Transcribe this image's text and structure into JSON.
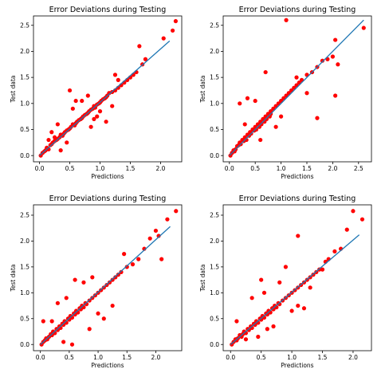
{
  "chart_data": [
    {
      "type": "scatter",
      "title": "Error Deviations during Testing",
      "xlabel": "Predictions",
      "ylabel": "Test data",
      "xlim": [
        -0.1,
        2.35
      ],
      "ylim": [
        -0.12,
        2.68
      ],
      "xticks": [
        "0.0",
        "0.5",
        "1.0",
        "1.5",
        "2.0"
      ],
      "yticks": [
        "0.0",
        "0.5",
        "1.0",
        "1.5",
        "2.0",
        "2.5"
      ],
      "point_color": "#ff0000",
      "line_color": "#1f77b4",
      "fit_line": {
        "x": [
          0.0,
          2.15
        ],
        "y": [
          0.0,
          2.2
        ]
      },
      "x": [
        0.02,
        0.05,
        0.08,
        0.1,
        0.12,
        0.15,
        0.18,
        0.2,
        0.22,
        0.25,
        0.28,
        0.3,
        0.33,
        0.35,
        0.38,
        0.4,
        0.42,
        0.45,
        0.48,
        0.5,
        0.52,
        0.55,
        0.58,
        0.6,
        0.62,
        0.65,
        0.68,
        0.7,
        0.72,
        0.75,
        0.78,
        0.8,
        0.82,
        0.85,
        0.88,
        0.9,
        0.92,
        0.95,
        0.98,
        1.0,
        1.02,
        1.05,
        1.08,
        1.1,
        1.12,
        1.15,
        1.2,
        1.25,
        1.3,
        1.35,
        1.4,
        1.45,
        1.5,
        1.55,
        1.6,
        1.7,
        1.75,
        1.1,
        0.55,
        0.6,
        0.3,
        0.2,
        0.15,
        0.7,
        0.45,
        0.85,
        0.9,
        1.0,
        1.2,
        0.5,
        0.25,
        0.35,
        1.25,
        1.3,
        0.95,
        2.05,
        2.2,
        2.25,
        1.65,
        0.8
      ],
      "y": [
        0.0,
        0.05,
        0.08,
        0.1,
        0.15,
        0.12,
        0.2,
        0.22,
        0.25,
        0.28,
        0.3,
        0.32,
        0.35,
        0.4,
        0.38,
        0.42,
        0.45,
        0.48,
        0.5,
        0.52,
        0.55,
        0.6,
        0.58,
        0.62,
        0.65,
        0.68,
        0.7,
        0.72,
        0.75,
        0.78,
        0.8,
        0.82,
        0.85,
        0.88,
        0.9,
        0.95,
        0.92,
        0.98,
        1.0,
        1.02,
        1.05,
        1.08,
        1.1,
        1.12,
        1.15,
        1.2,
        1.22,
        1.25,
        1.3,
        1.35,
        1.4,
        1.45,
        1.5,
        1.55,
        1.6,
        1.75,
        1.85,
        0.65,
        0.9,
        1.05,
        0.6,
        0.45,
        0.3,
        1.05,
        0.25,
        0.55,
        0.7,
        0.85,
        0.95,
        1.25,
        0.35,
        0.1,
        1.55,
        1.45,
        0.75,
        2.25,
        2.4,
        2.58,
        2.1,
        1.15
      ]
    },
    {
      "type": "scatter",
      "title": "Error Deviations during Testing",
      "xlabel": "Predictions",
      "ylabel": "Test data",
      "xlim": [
        -0.12,
        2.75
      ],
      "ylim": [
        -0.12,
        2.68
      ],
      "xticks": [
        "0.0",
        "0.5",
        "1.0",
        "1.5",
        "2.0",
        "2.5"
      ],
      "yticks": [
        "0.0",
        "0.5",
        "1.0",
        "1.5",
        "2.0",
        "2.5"
      ],
      "point_color": "#ff0000",
      "line_color": "#1f77b4",
      "fit_line": {
        "x": [
          0.0,
          2.6
        ],
        "y": [
          0.0,
          2.6
        ]
      },
      "x": [
        0.02,
        0.05,
        0.08,
        0.1,
        0.12,
        0.15,
        0.18,
        0.2,
        0.22,
        0.25,
        0.28,
        0.3,
        0.33,
        0.35,
        0.38,
        0.4,
        0.42,
        0.45,
        0.48,
        0.5,
        0.52,
        0.55,
        0.58,
        0.6,
        0.62,
        0.65,
        0.68,
        0.7,
        0.72,
        0.75,
        0.78,
        0.8,
        0.85,
        0.9,
        0.95,
        1.0,
        1.05,
        1.1,
        1.15,
        1.2,
        1.25,
        1.3,
        1.35,
        1.4,
        1.5,
        1.6,
        1.7,
        1.8,
        1.9,
        2.0,
        2.05,
        2.1,
        2.6,
        1.1,
        0.2,
        0.5,
        0.35,
        0.7,
        0.8,
        1.7,
        1.5,
        1.0,
        0.3,
        0.6,
        0.9,
        2.05,
        1.3
      ],
      "y": [
        0.0,
        0.05,
        0.1,
        0.08,
        0.12,
        0.18,
        0.2,
        0.25,
        0.22,
        0.3,
        0.28,
        0.35,
        0.3,
        0.4,
        0.38,
        0.45,
        0.42,
        0.5,
        0.48,
        0.55,
        0.5,
        0.6,
        0.55,
        0.65,
        0.6,
        0.7,
        0.65,
        0.75,
        0.7,
        0.8,
        0.75,
        0.85,
        0.9,
        0.95,
        1.0,
        1.05,
        1.1,
        1.15,
        1.2,
        1.25,
        1.3,
        1.35,
        1.4,
        1.45,
        1.55,
        1.6,
        1.7,
        1.82,
        1.85,
        1.9,
        2.22,
        1.75,
        2.45,
        2.6,
        1.0,
        1.05,
        1.1,
        1.6,
        0.8,
        0.72,
        1.2,
        0.75,
        0.6,
        0.3,
        0.55,
        1.15,
        1.5
      ]
    },
    {
      "type": "scatter",
      "title": "Error Deviations during Testing",
      "xlabel": "Predictions",
      "ylabel": "Test data",
      "xlim": [
        -0.12,
        2.45
      ],
      "ylim": [
        -0.12,
        2.7
      ],
      "xticks": [
        "0.0",
        "0.5",
        "1.0",
        "1.5",
        "2.0"
      ],
      "yticks": [
        "0.0",
        "0.5",
        "1.0",
        "1.5",
        "2.0",
        "2.5"
      ],
      "point_color": "#ff0000",
      "line_color": "#1f77b4",
      "fit_line": {
        "x": [
          0.0,
          2.25
        ],
        "y": [
          0.0,
          2.28
        ]
      },
      "x": [
        0.02,
        0.05,
        0.08,
        0.1,
        0.12,
        0.15,
        0.18,
        0.2,
        0.22,
        0.25,
        0.28,
        0.3,
        0.33,
        0.35,
        0.38,
        0.4,
        0.42,
        0.45,
        0.48,
        0.5,
        0.52,
        0.55,
        0.58,
        0.6,
        0.62,
        0.65,
        0.68,
        0.7,
        0.72,
        0.75,
        0.78,
        0.8,
        0.85,
        0.9,
        0.95,
        1.0,
        1.05,
        1.1,
        1.15,
        1.2,
        1.25,
        1.3,
        1.35,
        1.4,
        1.5,
        1.6,
        1.7,
        1.8,
        1.9,
        2.0,
        2.1,
        2.2,
        2.35,
        0.05,
        0.6,
        0.75,
        0.9,
        0.55,
        0.4,
        0.3,
        1.0,
        1.1,
        1.25,
        0.2,
        0.45,
        0.85,
        2.05,
        1.45
      ],
      "y": [
        0.0,
        0.05,
        0.08,
        0.12,
        0.1,
        0.15,
        0.2,
        0.18,
        0.25,
        0.22,
        0.3,
        0.28,
        0.35,
        0.32,
        0.4,
        0.38,
        0.45,
        0.42,
        0.5,
        0.48,
        0.55,
        0.52,
        0.6,
        0.58,
        0.65,
        0.62,
        0.7,
        0.68,
        0.75,
        0.72,
        0.8,
        0.78,
        0.85,
        0.9,
        0.95,
        1.0,
        1.05,
        1.1,
        1.15,
        1.2,
        1.25,
        1.3,
        1.35,
        1.4,
        1.5,
        1.55,
        1.65,
        1.85,
        2.05,
        2.2,
        1.65,
        2.42,
        2.58,
        0.45,
        1.25,
        1.2,
        1.3,
        0.0,
        0.05,
        0.8,
        0.6,
        0.5,
        0.75,
        0.45,
        0.9,
        0.3,
        2.1,
        1.75
      ]
    },
    {
      "type": "scatter",
      "title": "Error Deviations during Testing",
      "xlabel": "Predictions",
      "ylabel": "Test data",
      "xlim": [
        -0.12,
        2.3
      ],
      "ylim": [
        -0.12,
        2.7
      ],
      "xticks": [
        "0.0",
        "0.5",
        "1.0",
        "1.5",
        "2.0"
      ],
      "yticks": [
        "0.0",
        "0.5",
        "1.0",
        "1.5",
        "2.0",
        "2.5"
      ],
      "point_color": "#ff0000",
      "line_color": "#1f77b4",
      "fit_line": {
        "x": [
          0.0,
          2.1
        ],
        "y": [
          0.0,
          2.12
        ]
      },
      "x": [
        0.02,
        0.05,
        0.08,
        0.1,
        0.12,
        0.15,
        0.18,
        0.2,
        0.22,
        0.25,
        0.28,
        0.3,
        0.33,
        0.35,
        0.38,
        0.4,
        0.42,
        0.45,
        0.48,
        0.5,
        0.52,
        0.55,
        0.58,
        0.6,
        0.62,
        0.65,
        0.68,
        0.7,
        0.72,
        0.75,
        0.78,
        0.8,
        0.85,
        0.9,
        0.95,
        1.0,
        1.05,
        1.1,
        1.15,
        1.2,
        1.25,
        1.3,
        1.35,
        1.4,
        1.5,
        1.55,
        1.6,
        1.7,
        1.8,
        1.9,
        2.0,
        2.15,
        1.1,
        0.5,
        0.55,
        0.35,
        0.8,
        0.9,
        0.6,
        1.0,
        1.2,
        0.25,
        0.45,
        0.7,
        1.3,
        1.45,
        0.1,
        1.1
      ],
      "y": [
        0.0,
        0.05,
        0.1,
        0.08,
        0.12,
        0.18,
        0.15,
        0.2,
        0.25,
        0.22,
        0.3,
        0.28,
        0.35,
        0.32,
        0.4,
        0.38,
        0.45,
        0.42,
        0.5,
        0.48,
        0.55,
        0.52,
        0.6,
        0.58,
        0.65,
        0.62,
        0.7,
        0.68,
        0.75,
        0.72,
        0.8,
        0.78,
        0.85,
        0.9,
        0.95,
        1.0,
        1.05,
        1.1,
        1.15,
        1.2,
        1.25,
        1.3,
        1.35,
        1.4,
        1.45,
        1.6,
        1.65,
        1.8,
        1.85,
        2.22,
        2.58,
        2.42,
        2.1,
        1.25,
        1.0,
        0.9,
        1.2,
        1.5,
        0.3,
        0.65,
        0.7,
        0.1,
        0.15,
        0.35,
        1.1,
        1.45,
        0.45,
        0.75
      ]
    }
  ]
}
